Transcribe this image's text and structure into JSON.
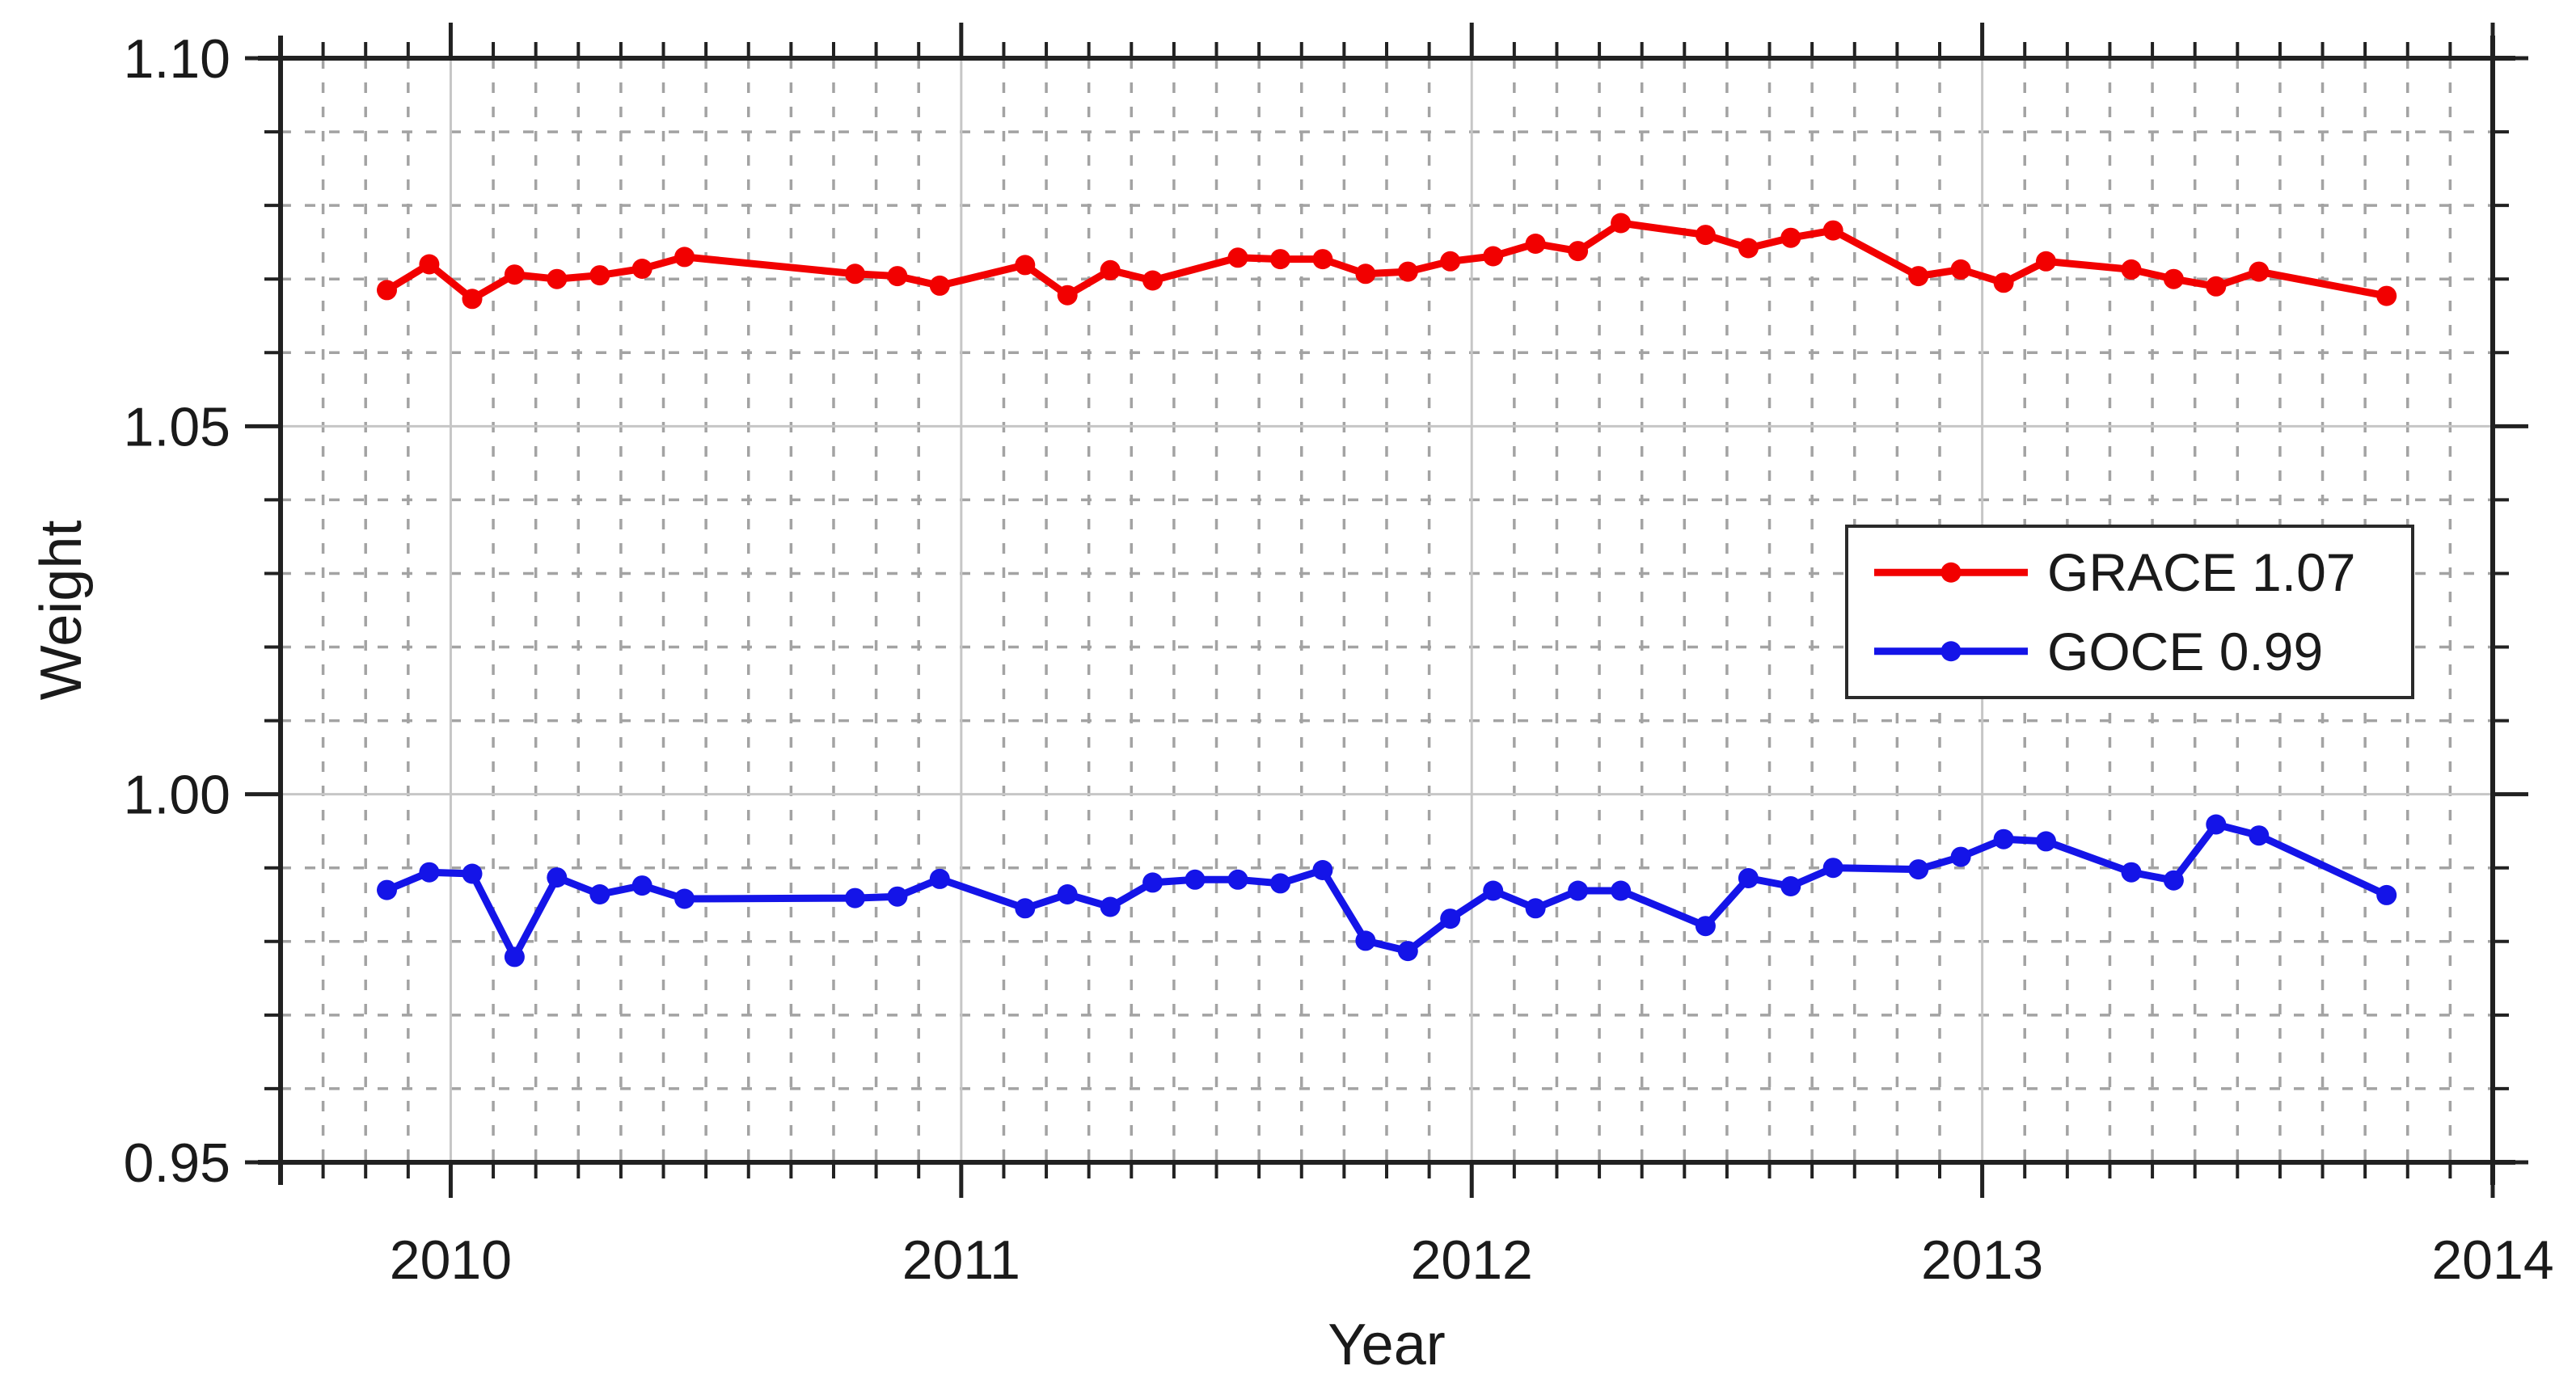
{
  "chart_data": {
    "type": "line",
    "title": "",
    "xlabel": "Year",
    "ylabel": "Weight",
    "xlim": [
      2009.6667,
      2014
    ],
    "ylim": [
      0.95,
      1.1
    ],
    "x_major_ticks": [
      2010,
      2011,
      2012,
      2013,
      2014
    ],
    "x_tick_labels": [
      "2010",
      "2011",
      "2012",
      "2013",
      "2014"
    ],
    "y_major_ticks": [
      0.95,
      1.0,
      1.05,
      1.1
    ],
    "y_tick_labels": [
      "0.95",
      "1.00",
      "1.05",
      "1.10"
    ],
    "x_minor_step": 0.08333,
    "y_minor_step": 0.01,
    "grid": {
      "major": "solid",
      "minor": "dashed",
      "major_color": "#c6c6c6",
      "minor_color": "#a3a3a3"
    },
    "axis_color": "#212121",
    "text_color": "#1a1a1a",
    "legend_position": "center-right",
    "legend_border_color": "#2a2a2a",
    "series": [
      {
        "name": "GRACE 1.07",
        "color": "#f20000",
        "marker": "circle",
        "points": [
          [
            2009.875,
            1.0685
          ],
          [
            2009.958,
            1.072
          ],
          [
            2010.042,
            1.0673
          ],
          [
            2010.125,
            1.0706
          ],
          [
            2010.208,
            1.07
          ],
          [
            2010.292,
            1.0705
          ],
          [
            2010.375,
            1.0714
          ],
          [
            2010.458,
            1.073
          ],
          [
            2010.792,
            1.0707
          ],
          [
            2010.875,
            1.0704
          ],
          [
            2010.958,
            1.0691
          ],
          [
            2011.125,
            1.0719
          ],
          [
            2011.208,
            1.0678
          ],
          [
            2011.292,
            1.0712
          ],
          [
            2011.375,
            1.0698
          ],
          [
            2011.542,
            1.0729
          ],
          [
            2011.625,
            1.0727
          ],
          [
            2011.708,
            1.0727
          ],
          [
            2011.792,
            1.0707
          ],
          [
            2011.875,
            1.071
          ],
          [
            2011.958,
            1.0724
          ],
          [
            2012.042,
            1.0731
          ],
          [
            2012.125,
            1.0748
          ],
          [
            2012.208,
            1.0738
          ],
          [
            2012.292,
            1.0776
          ],
          [
            2012.458,
            1.076
          ],
          [
            2012.542,
            1.0742
          ],
          [
            2012.625,
            1.0756
          ],
          [
            2012.708,
            1.0766
          ],
          [
            2012.875,
            1.0704
          ],
          [
            2012.958,
            1.0713
          ],
          [
            2013.042,
            1.0695
          ],
          [
            2013.125,
            1.0724
          ],
          [
            2013.292,
            1.0713
          ],
          [
            2013.375,
            1.07
          ],
          [
            2013.458,
            1.069
          ],
          [
            2013.542,
            1.071
          ],
          [
            2013.792,
            1.0677
          ]
        ]
      },
      {
        "name": "GOCE 0.99",
        "color": "#1414e8",
        "marker": "circle",
        "points": [
          [
            2009.875,
            0.987
          ],
          [
            2009.958,
            0.9894
          ],
          [
            2010.042,
            0.9892
          ],
          [
            2010.125,
            0.9779
          ],
          [
            2010.208,
            0.9887
          ],
          [
            2010.292,
            0.9864
          ],
          [
            2010.375,
            0.9876
          ],
          [
            2010.458,
            0.9858
          ],
          [
            2010.792,
            0.9859
          ],
          [
            2010.875,
            0.9861
          ],
          [
            2010.958,
            0.9885
          ],
          [
            2011.125,
            0.9845
          ],
          [
            2011.208,
            0.9864
          ],
          [
            2011.292,
            0.9847
          ],
          [
            2011.375,
            0.988
          ],
          [
            2011.458,
            0.9884
          ],
          [
            2011.542,
            0.9884
          ],
          [
            2011.625,
            0.9879
          ],
          [
            2011.708,
            0.9897
          ],
          [
            2011.792,
            0.9801
          ],
          [
            2011.875,
            0.9787
          ],
          [
            2011.958,
            0.9831
          ],
          [
            2012.042,
            0.9869
          ],
          [
            2012.125,
            0.9845
          ],
          [
            2012.208,
            0.9869
          ],
          [
            2012.292,
            0.9869
          ],
          [
            2012.458,
            0.9821
          ],
          [
            2012.542,
            0.9886
          ],
          [
            2012.625,
            0.9875
          ],
          [
            2012.708,
            0.99
          ],
          [
            2012.875,
            0.9898
          ],
          [
            2012.958,
            0.9915
          ],
          [
            2013.042,
            0.9939
          ],
          [
            2013.125,
            0.9936
          ],
          [
            2013.292,
            0.9894
          ],
          [
            2013.375,
            0.9883
          ],
          [
            2013.458,
            0.9959
          ],
          [
            2013.542,
            0.9944
          ],
          [
            2013.792,
            0.9863
          ]
        ]
      }
    ]
  }
}
